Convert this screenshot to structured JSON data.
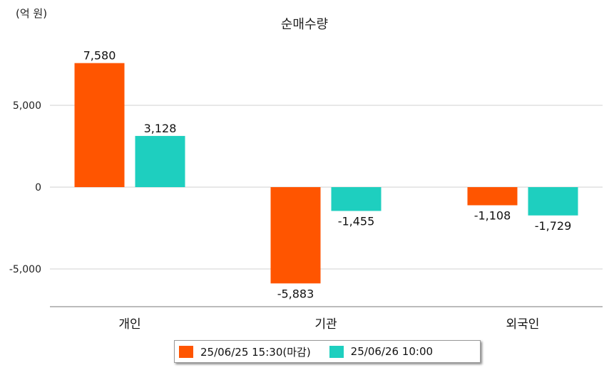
{
  "chart_data": {
    "type": "bar",
    "title": "순매수량",
    "unit_label": "(억 원)",
    "categories": [
      "개인",
      "기관",
      "외국인"
    ],
    "series": [
      {
        "name": "25/06/25 15:30(마감)",
        "color": "#ff5500",
        "values": [
          7580,
          -5883,
          -1108
        ]
      },
      {
        "name": "25/06/26 10:00",
        "color": "#1ecfbf",
        "values": [
          3128,
          -1455,
          -1729
        ]
      }
    ],
    "value_labels": [
      [
        "7,580",
        "-5,883",
        "-1,108"
      ],
      [
        "3,128",
        "-1,455",
        "-1,729"
      ]
    ],
    "y_ticks": [
      5000,
      0,
      -5000
    ],
    "y_tick_labels": [
      "5,000",
      "0",
      "-5,000"
    ],
    "ylim": [
      -7400,
      10000
    ],
    "grid": true,
    "legend_position": "bottom"
  }
}
